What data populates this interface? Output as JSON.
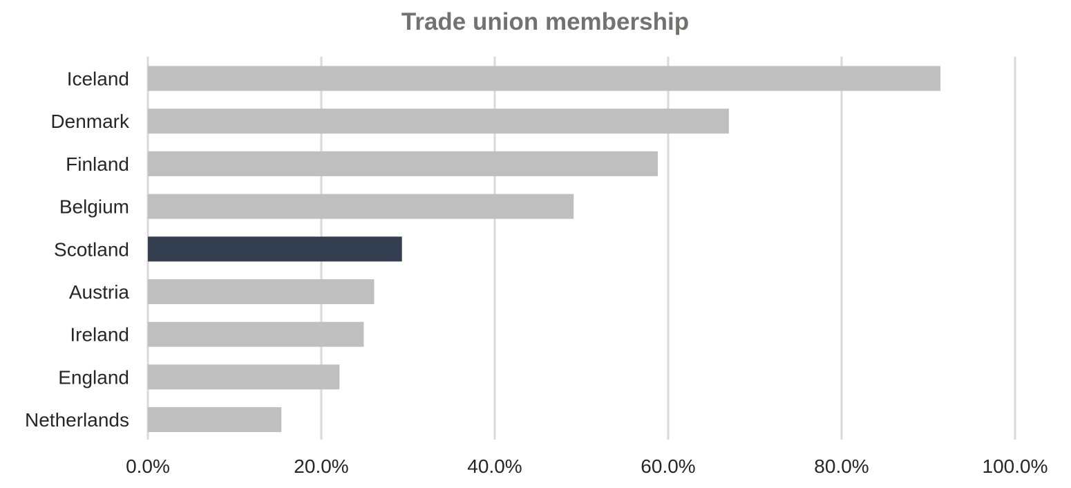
{
  "chart_data": {
    "type": "bar",
    "orientation": "horizontal",
    "title": "Trade union membership",
    "xlabel": "",
    "ylabel": "",
    "categories": [
      "Iceland",
      "Denmark",
      "Finland",
      "Belgium",
      "Scotland",
      "Austria",
      "Ireland",
      "England",
      "Netherlands"
    ],
    "values": [
      91.4,
      67.0,
      58.8,
      49.1,
      29.3,
      26.1,
      24.9,
      22.1,
      15.4
    ],
    "xlim": [
      0,
      100
    ],
    "x_ticks": [
      "0.0%",
      "20.0%",
      "40.0%",
      "60.0%",
      "80.0%",
      "100.0%"
    ],
    "grid": "vertical",
    "legend": "none",
    "colors": {
      "default_bar": "#bfbfbf",
      "highlight_bar": "#333f50",
      "highlight_category": "Scotland",
      "title": "#767171",
      "text": "#262626",
      "grid": "#d9d9d9"
    }
  }
}
